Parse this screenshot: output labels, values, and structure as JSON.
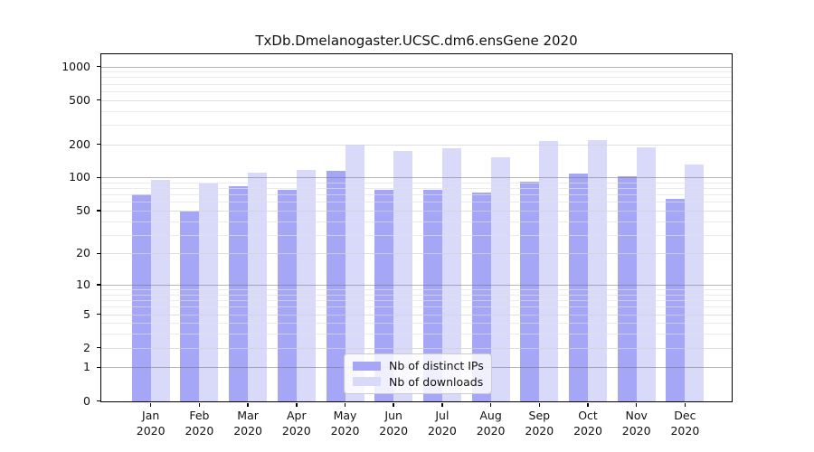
{
  "window": {
    "background": "#ffffff"
  },
  "chart_data": {
    "type": "bar",
    "title": "TxDb.Dmelanogaster.UCSC.dm6.ensGene 2020",
    "months": [
      "Jan",
      "Feb",
      "Mar",
      "Apr",
      "May",
      "Jun",
      "Jul",
      "Aug",
      "Sep",
      "Oct",
      "Nov",
      "Dec"
    ],
    "year": "2020",
    "series": [
      {
        "name": "Nb of distinct IPs",
        "color": "#a6a6f7",
        "values": [
          70,
          49,
          84,
          77,
          114,
          78,
          78,
          73,
          92,
          108,
          103,
          64
        ]
      },
      {
        "name": "Nb of downloads",
        "color": "#d9d9f9",
        "values": [
          96,
          88,
          110,
          116,
          200,
          175,
          183,
          152,
          214,
          219,
          187,
          130
        ]
      }
    ],
    "y_axis": {
      "scale": "log1p",
      "ticks": [
        0,
        1,
        2,
        5,
        10,
        20,
        50,
        100,
        200,
        500,
        1000
      ],
      "minor_gridlines": [
        3,
        4,
        6,
        7,
        8,
        9,
        30,
        40,
        60,
        70,
        80,
        90,
        300,
        400,
        600,
        700,
        800,
        900
      ],
      "mid_gridlines": [
        2,
        5,
        20,
        50,
        200,
        500
      ],
      "major_gridlines": [
        1,
        10,
        100,
        1000
      ]
    },
    "legend": {
      "position": "bottom-center"
    },
    "grid": true,
    "colors": {
      "axis": "#000000",
      "grid_major": "#6e6e76",
      "grid_minor": "#e0e0e6"
    }
  }
}
